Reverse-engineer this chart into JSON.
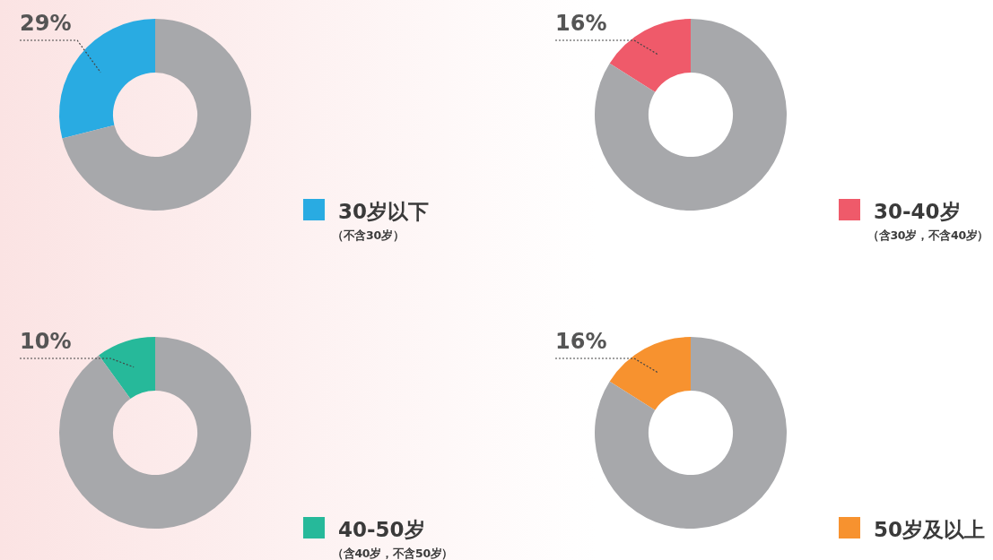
{
  "chart_data": [
    {
      "type": "donut",
      "categories": [
        "30岁以下",
        null
      ],
      "values": [
        29,
        71
      ],
      "colors": [
        "#29abe2",
        "#a7a8ab"
      ],
      "value_labels": [
        "29%",
        null
      ],
      "annotations": [
        "（不含30岁）"
      ],
      "legend": "bottom right"
    },
    {
      "type": "donut",
      "categories": [
        "30-40岁",
        null
      ],
      "values": [
        16,
        84
      ],
      "colors": [
        "#ef5a6a",
        "#a7a8ab"
      ],
      "value_labels": [
        "16%",
        null
      ],
      "annotations": [
        "（含30岁，不含40岁）"
      ],
      "legend": "bottom right"
    },
    {
      "type": "donut",
      "categories": [
        "40-50岁",
        null
      ],
      "values": [
        10,
        90
      ],
      "colors": [
        "#26b99a",
        "#a7a8ab"
      ],
      "value_labels": [
        "10%",
        null
      ],
      "annotations": [
        "（含40岁，不含50岁）"
      ],
      "legend": "bottom right"
    },
    {
      "type": "donut",
      "categories": [
        "50岁及以上",
        null
      ],
      "values": [
        16,
        84
      ],
      "colors": [
        "#f7922f",
        "#a7a8ab"
      ],
      "value_labels": [
        "16%",
        null
      ],
      "legend": "bottom right"
    }
  ]
}
